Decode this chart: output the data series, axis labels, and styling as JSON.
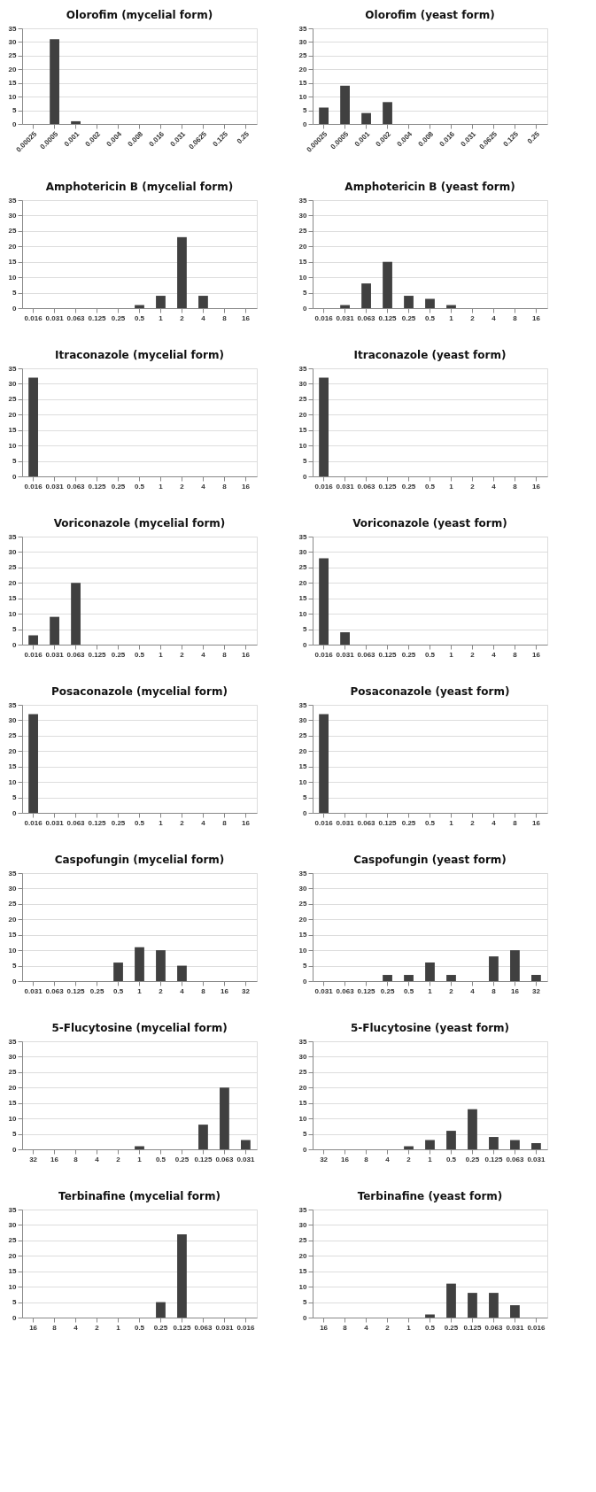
{
  "chart_data": [
    {
      "type": "bar",
      "title": "Olorofim (mycelial form)",
      "categories": [
        "0.00025",
        "0.0005",
        "0.001",
        "0.002",
        "0.004",
        "0.008",
        "0.016",
        "0.031",
        "0.0625",
        "0.125",
        "0.25"
      ],
      "values": [
        0,
        31,
        1,
        0,
        0,
        0,
        0,
        0,
        0,
        0,
        0
      ],
      "color": "#404040",
      "ylim": [
        0,
        35
      ],
      "yticks": [
        0,
        5,
        10,
        15,
        20,
        25,
        30,
        35
      ],
      "grid": "y"
    },
    {
      "type": "bar",
      "title": "Olorofim (yeast form)",
      "categories": [
        "0.00025",
        "0.0005",
        "0.001",
        "0.002",
        "0.004",
        "0.008",
        "0.016",
        "0.031",
        "0.0625",
        "0.125",
        "0.25"
      ],
      "values": [
        6,
        14,
        4,
        8,
        0,
        0,
        0,
        0,
        0,
        0,
        0
      ],
      "color": "#404040",
      "ylim": [
        0,
        35
      ],
      "yticks": [
        0,
        5,
        10,
        15,
        20,
        25,
        30,
        35
      ],
      "grid": "y"
    },
    {
      "type": "bar",
      "title": "Amphotericin B (mycelial form)",
      "categories": [
        "0.016",
        "0.031",
        "0.063",
        "0.125",
        "0.25",
        "0.5",
        "1",
        "2",
        "4",
        "8",
        "16"
      ],
      "values": [
        0,
        0,
        0,
        0,
        0,
        1,
        4,
        23,
        4,
        0,
        0
      ],
      "color": "#404040",
      "ylim": [
        0,
        35
      ],
      "yticks": [
        0,
        5,
        10,
        15,
        20,
        25,
        30,
        35
      ],
      "grid": "y"
    },
    {
      "type": "bar",
      "title": "Amphotericin B (yeast form)",
      "categories": [
        "0.016",
        "0.031",
        "0.063",
        "0.125",
        "0.25",
        "0.5",
        "1",
        "2",
        "4",
        "8",
        "16"
      ],
      "values": [
        0,
        1,
        8,
        15,
        4,
        3,
        1,
        0,
        0,
        0,
        0
      ],
      "color": "#404040",
      "ylim": [
        0,
        35
      ],
      "yticks": [
        0,
        5,
        10,
        15,
        20,
        25,
        30,
        35
      ],
      "grid": "y"
    },
    {
      "type": "bar",
      "title": "Itraconazole (mycelial form)",
      "categories": [
        "0.016",
        "0.031",
        "0.063",
        "0.125",
        "0.25",
        "0.5",
        "1",
        "2",
        "4",
        "8",
        "16"
      ],
      "values": [
        32,
        0,
        0,
        0,
        0,
        0,
        0,
        0,
        0,
        0,
        0
      ],
      "color": "#404040",
      "ylim": [
        0,
        35
      ],
      "yticks": [
        0,
        5,
        10,
        15,
        20,
        25,
        30,
        35
      ],
      "grid": "y"
    },
    {
      "type": "bar",
      "title": "Itraconazole (yeast form)",
      "categories": [
        "0.016",
        "0.031",
        "0.063",
        "0.125",
        "0.25",
        "0.5",
        "1",
        "2",
        "4",
        "8",
        "16"
      ],
      "values": [
        32,
        0,
        0,
        0,
        0,
        0,
        0,
        0,
        0,
        0,
        0
      ],
      "color": "#404040",
      "ylim": [
        0,
        35
      ],
      "yticks": [
        0,
        5,
        10,
        15,
        20,
        25,
        30,
        35
      ],
      "grid": "y"
    },
    {
      "type": "bar",
      "title": "Voriconazole (mycelial form)",
      "categories": [
        "0.016",
        "0.031",
        "0.063",
        "0.125",
        "0.25",
        "0.5",
        "1",
        "2",
        "4",
        "8",
        "16"
      ],
      "values": [
        3,
        9,
        20,
        0,
        0,
        0,
        0,
        0,
        0,
        0,
        0
      ],
      "color": "#404040",
      "ylim": [
        0,
        35
      ],
      "yticks": [
        0,
        5,
        10,
        15,
        20,
        25,
        30,
        35
      ],
      "grid": "y"
    },
    {
      "type": "bar",
      "title": "Voriconazole (yeast form)",
      "categories": [
        "0.016",
        "0.031",
        "0.063",
        "0.125",
        "0.25",
        "0.5",
        "1",
        "2",
        "4",
        "8",
        "16"
      ],
      "values": [
        28,
        4,
        0,
        0,
        0,
        0,
        0,
        0,
        0,
        0,
        0
      ],
      "color": "#404040",
      "ylim": [
        0,
        35
      ],
      "yticks": [
        0,
        5,
        10,
        15,
        20,
        25,
        30,
        35
      ],
      "grid": "y"
    },
    {
      "type": "bar",
      "title": "Posaconazole (mycelial form)",
      "categories": [
        "0.016",
        "0.031",
        "0.063",
        "0.125",
        "0.25",
        "0.5",
        "1",
        "2",
        "4",
        "8",
        "16"
      ],
      "values": [
        32,
        0,
        0,
        0,
        0,
        0,
        0,
        0,
        0,
        0,
        0
      ],
      "color": "#404040",
      "ylim": [
        0,
        35
      ],
      "yticks": [
        0,
        5,
        10,
        15,
        20,
        25,
        30,
        35
      ],
      "grid": "y"
    },
    {
      "type": "bar",
      "title": "Posaconazole (yeast form)",
      "categories": [
        "0.016",
        "0.031",
        "0.063",
        "0.125",
        "0.25",
        "0.5",
        "1",
        "2",
        "4",
        "8",
        "16"
      ],
      "values": [
        32,
        0,
        0,
        0,
        0,
        0,
        0,
        0,
        0,
        0,
        0
      ],
      "color": "#404040",
      "ylim": [
        0,
        35
      ],
      "yticks": [
        0,
        5,
        10,
        15,
        20,
        25,
        30,
        35
      ],
      "grid": "y"
    },
    {
      "type": "bar",
      "title": "Caspofungin (mycelial form)",
      "categories": [
        "0.031",
        "0.063",
        "0.125",
        "0.25",
        "0.5",
        "1",
        "2",
        "4",
        "8",
        "16",
        "32"
      ],
      "values": [
        0,
        0,
        0,
        0,
        6,
        11,
        10,
        5,
        0,
        0,
        0
      ],
      "color": "#404040",
      "ylim": [
        0,
        35
      ],
      "yticks": [
        0,
        5,
        10,
        15,
        20,
        25,
        30,
        35
      ],
      "grid": "y"
    },
    {
      "type": "bar",
      "title": "Caspofungin (yeast form)",
      "categories": [
        "0.031",
        "0.063",
        "0.125",
        "0.25",
        "0.5",
        "1",
        "2",
        "4",
        "8",
        "16",
        "32"
      ],
      "values": [
        0,
        0,
        0,
        2,
        2,
        6,
        2,
        0,
        8,
        10,
        2
      ],
      "color": "#404040",
      "ylim": [
        0,
        35
      ],
      "yticks": [
        0,
        5,
        10,
        15,
        20,
        25,
        30,
        35
      ],
      "grid": "y"
    },
    {
      "type": "bar",
      "title": "5-Flucytosine (mycelial form)",
      "categories": [
        "32",
        "16",
        "8",
        "4",
        "2",
        "1",
        "0.5",
        "0.25",
        "0.125",
        "0.063",
        "0.031"
      ],
      "values": [
        0,
        0,
        0,
        0,
        0,
        1,
        0,
        0,
        8,
        20,
        3
      ],
      "color": "#404040",
      "ylim": [
        0,
        35
      ],
      "yticks": [
        0,
        5,
        10,
        15,
        20,
        25,
        30,
        35
      ],
      "grid": "y"
    },
    {
      "type": "bar",
      "title": "5-Flucytosine (yeast form)",
      "categories": [
        "32",
        "16",
        "8",
        "4",
        "2",
        "1",
        "0.5",
        "0.25",
        "0.125",
        "0.063",
        "0.031"
      ],
      "values": [
        0,
        0,
        0,
        0,
        1,
        3,
        6,
        13,
        4,
        3,
        2
      ],
      "color": "#404040",
      "ylim": [
        0,
        35
      ],
      "yticks": [
        0,
        5,
        10,
        15,
        20,
        25,
        30,
        35
      ],
      "grid": "y"
    },
    {
      "type": "bar",
      "title": "Terbinafine (mycelial form)",
      "categories": [
        "16",
        "8",
        "4",
        "2",
        "1",
        "0.5",
        "0.25",
        "0.125",
        "0.063",
        "0.031",
        "0.016"
      ],
      "values": [
        0,
        0,
        0,
        0,
        0,
        0,
        5,
        27,
        0,
        0,
        0
      ],
      "color": "#404040",
      "ylim": [
        0,
        35
      ],
      "yticks": [
        0,
        5,
        10,
        15,
        20,
        25,
        30,
        35
      ],
      "grid": "y"
    },
    {
      "type": "bar",
      "title": "Terbinafine (yeast form)",
      "categories": [
        "16",
        "8",
        "4",
        "2",
        "1",
        "0.5",
        "0.25",
        "0.125",
        "0.063",
        "0.031",
        "0.016"
      ],
      "values": [
        0,
        0,
        0,
        0,
        0,
        1,
        11,
        8,
        8,
        4,
        0
      ],
      "color": "#404040",
      "ylim": [
        0,
        35
      ],
      "yticks": [
        0,
        5,
        10,
        15,
        20,
        25,
        30,
        35
      ],
      "grid": "y"
    }
  ]
}
